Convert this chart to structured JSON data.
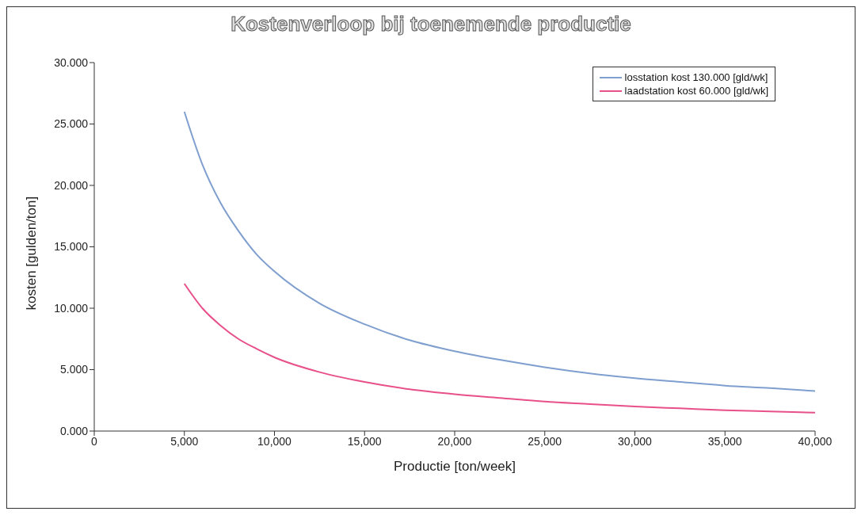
{
  "chart_data": {
    "type": "line",
    "title": "Kostenverloop bij toenemende productie",
    "xlabel": "Productie [ton/week]",
    "ylabel": "kosten [gulden/ton]",
    "x": [
      5000,
      6000,
      7000,
      8000,
      9000,
      10000,
      12500,
      15000,
      17500,
      20000,
      22500,
      25000,
      27500,
      30000,
      32500,
      35000,
      37500,
      40000
    ],
    "series": [
      {
        "name": "losstation kost 130.000 [gld/wk]",
        "color": "#7f9fcf",
        "values": [
          26,
          21.7,
          18.6,
          16.3,
          14.4,
          13,
          10.4,
          8.7,
          7.4,
          6.5,
          5.8,
          5.2,
          4.7,
          4.3,
          4,
          3.7,
          3.5,
          3.25
        ]
      },
      {
        "name": "laadstation kost 60.000 [gld/wk]",
        "color": "#e8508a",
        "values": [
          12,
          10,
          8.6,
          7.5,
          6.7,
          6,
          4.8,
          4,
          3.4,
          3,
          2.7,
          2.4,
          2.2,
          2,
          1.85,
          1.7,
          1.6,
          1.5
        ]
      }
    ],
    "xlim": [
      0,
      40000
    ],
    "xticks": [
      0,
      {
        "value": 5000,
        "label": "5,000"
      },
      {
        "value": 10000,
        "label": "10,000"
      },
      {
        "value": 15000,
        "label": "15,000"
      },
      {
        "value": 20000,
        "label": "20,000"
      },
      {
        "value": 25000,
        "label": "25,000"
      },
      {
        "value": 30000,
        "label": "30,000"
      },
      {
        "value": 35000,
        "label": "35,000"
      },
      {
        "value": 40000,
        "label": "40,000"
      }
    ],
    "ylim": [
      0,
      30
    ],
    "yticks": [
      {
        "value": 0,
        "label": "0.000"
      },
      {
        "value": 5,
        "label": "5.000"
      },
      {
        "value": 10,
        "label": "10.000"
      },
      {
        "value": 15,
        "label": "15.000"
      },
      {
        "value": 20,
        "label": "20.000"
      },
      {
        "value": 25,
        "label": "25.000"
      },
      {
        "value": 30,
        "label": "30.000"
      }
    ],
    "legend": "top right",
    "marker": "none",
    "line_style": "solid",
    "grid": false
  }
}
